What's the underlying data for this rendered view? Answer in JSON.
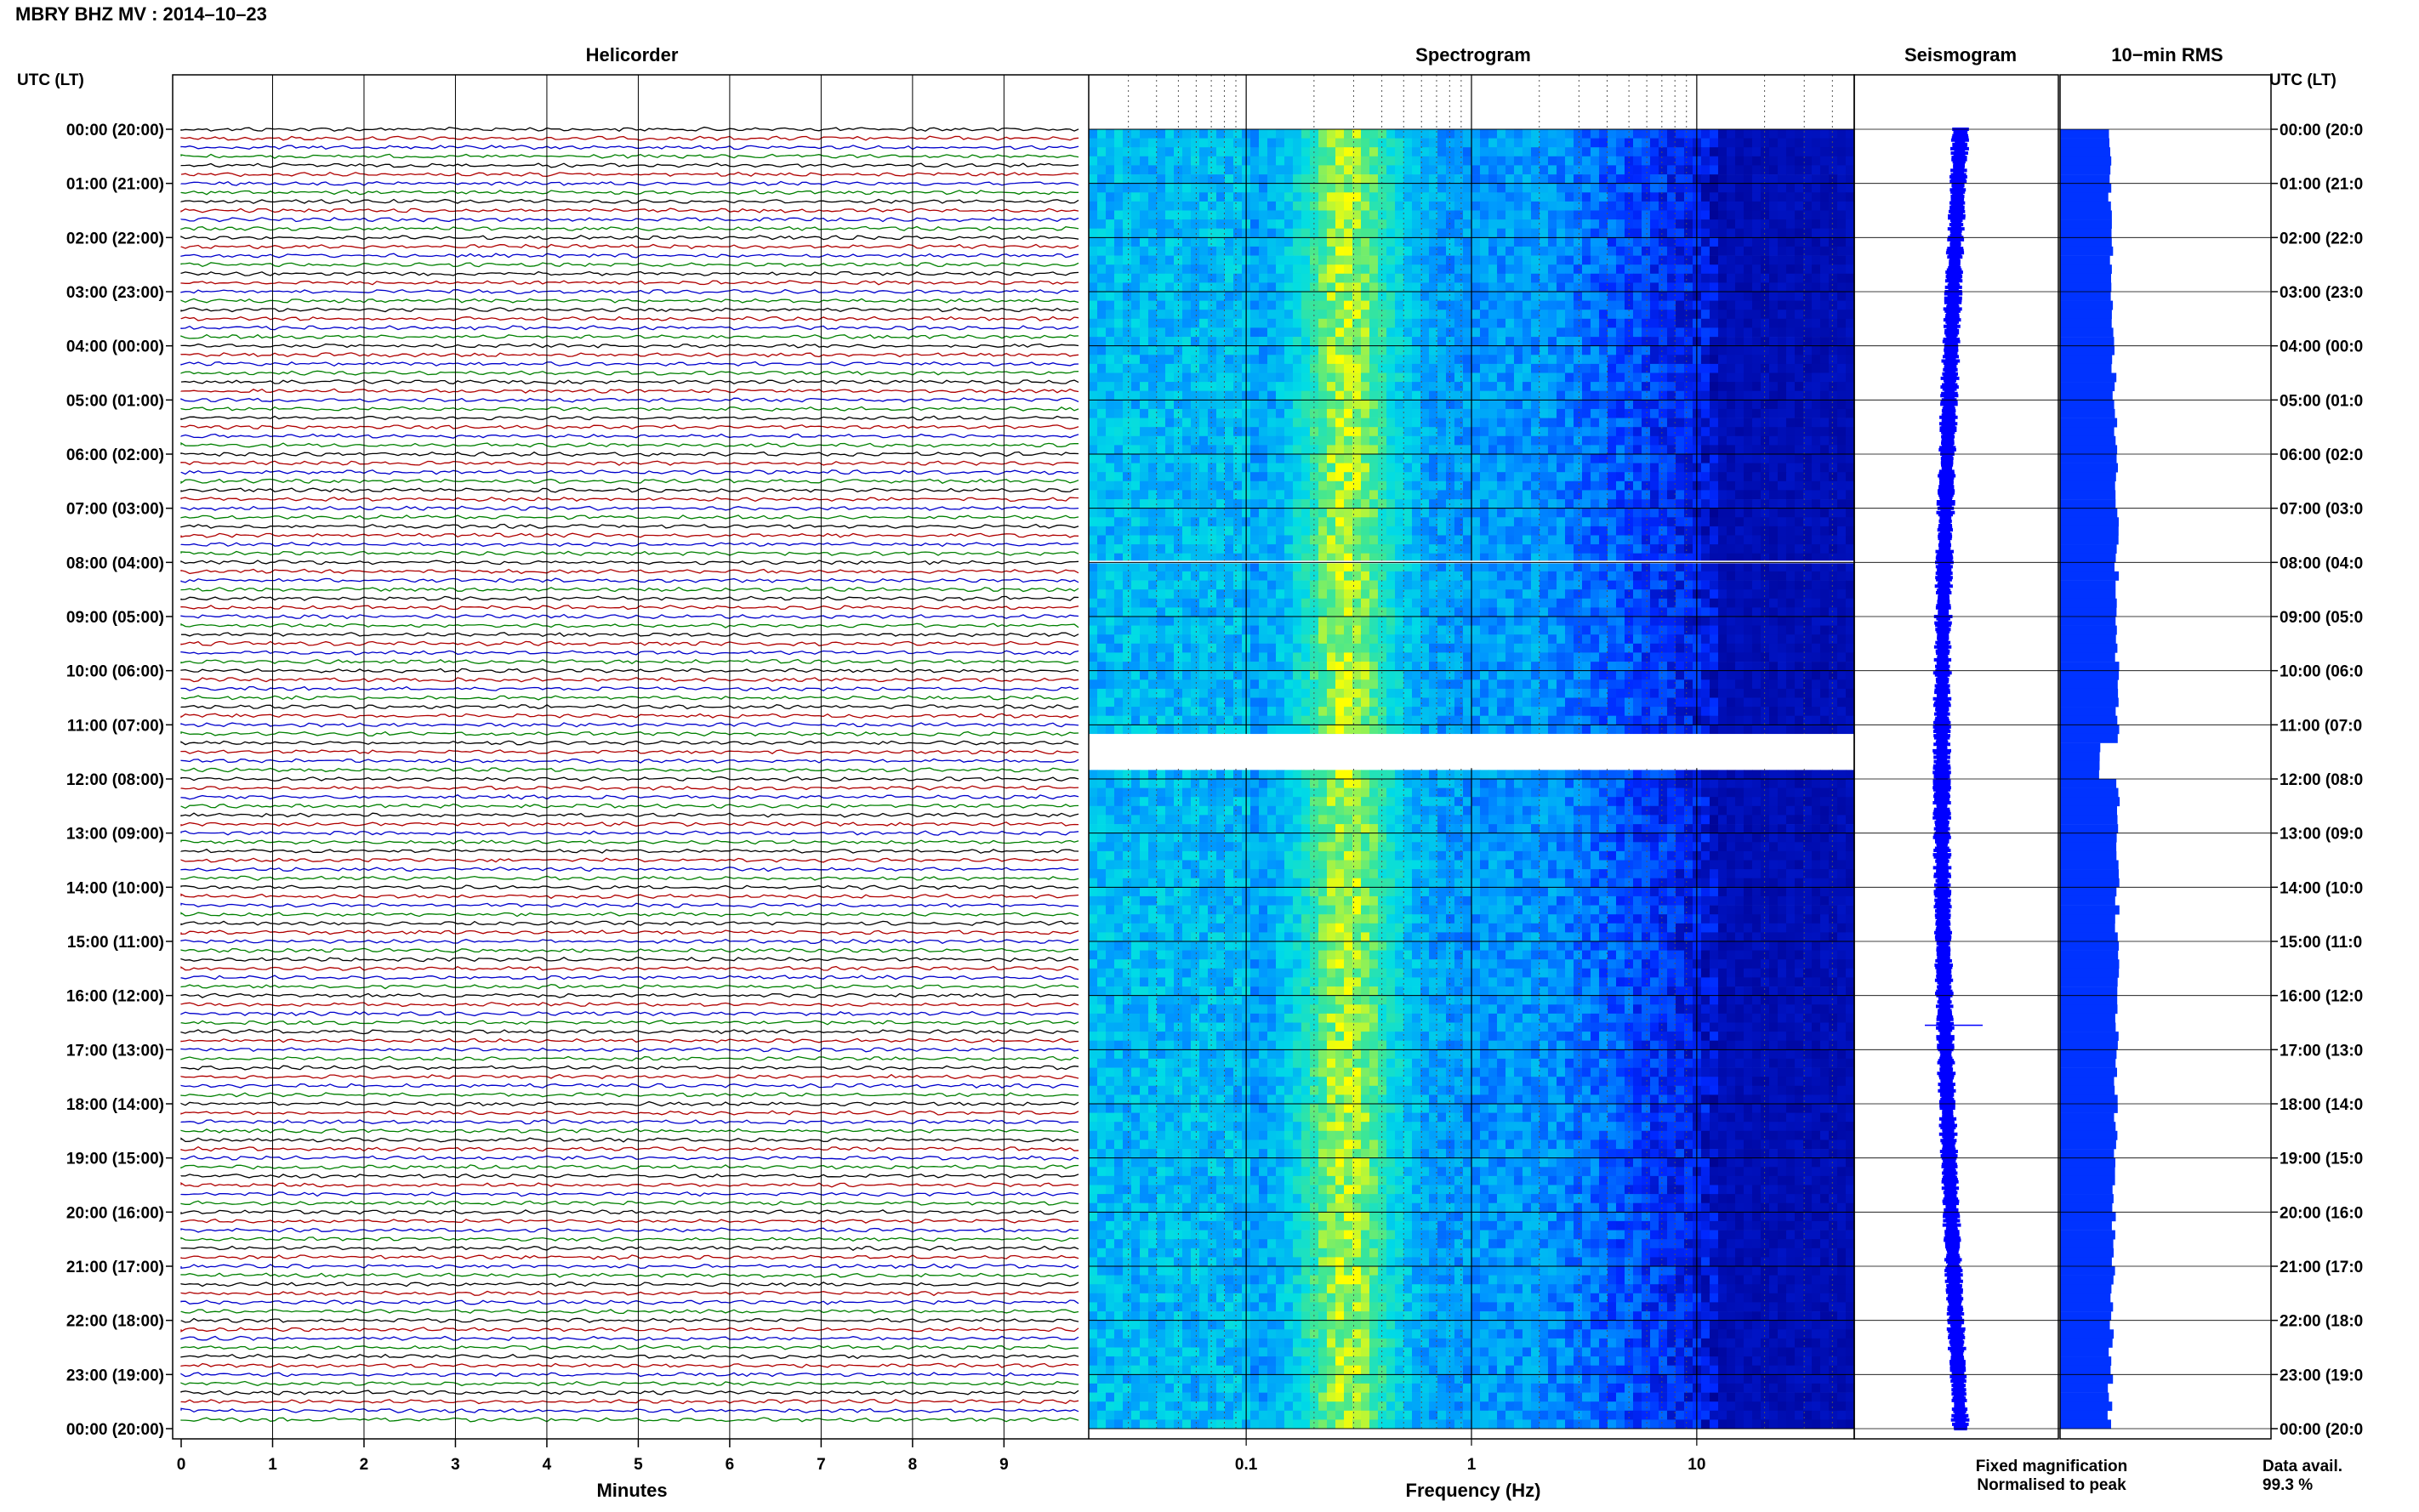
{
  "header": {
    "title": "MBRY BHZ MV : 2014–10–23",
    "left_axis_label": "UTC (LT)",
    "right_axis_label": "UTC (LT)"
  },
  "panels": {
    "helicorder": {
      "title": "Helicorder",
      "xlabel": "Minutes"
    },
    "spectrogram": {
      "title": "Spectrogram",
      "xlabel": "Frequency (Hz)"
    },
    "seismogram": {
      "title": "Seismogram"
    },
    "rms": {
      "title": "10−min RMS"
    }
  },
  "legend": {
    "fixed": "Fixed magnification",
    "normalised": "Normalised to peak",
    "fixed_color": "#0000ff",
    "normalised_color": "#ff0000"
  },
  "data_avail": {
    "label": "Data avail.",
    "value": "99.3 %"
  },
  "colors": {
    "helicorder_traces": [
      "#000000",
      "#b00000",
      "#0000cc",
      "#008000"
    ],
    "spectrogram_low": "#00008b",
    "spectrogram_high": "#ffff00",
    "seismogram": "#0000ff",
    "rms": "#0033ff"
  },
  "chart_data": [
    {
      "type": "line",
      "title": "Helicorder",
      "xlabel": "Minutes",
      "ylabel": "UTC (LT)",
      "xlim": [
        0,
        10
      ],
      "x_ticks": [
        "0",
        "1",
        "2",
        "3",
        "4",
        "5",
        "6",
        "7",
        "8",
        "9"
      ],
      "rows_per_hour": 6,
      "y_ticks_left": [
        "00:00 (20:00)",
        "01:00 (21:00)",
        "02:00 (22:00)",
        "03:00 (23:00)",
        "04:00 (00:00)",
        "05:00 (01:00)",
        "06:00 (02:00)",
        "07:00 (03:00)",
        "08:00 (04:00)",
        "09:00 (05:00)",
        "10:00 (06:00)",
        "11:00 (07:00)",
        "12:00 (08:00)",
        "13:00 (09:00)",
        "14:00 (10:00)",
        "15:00 (11:00)",
        "16:00 (12:00)",
        "17:00 (13:00)",
        "18:00 (14:00)",
        "19:00 (15:00)",
        "20:00 (16:00)",
        "21:00 (17:00)",
        "22:00 (18:00)",
        "23:00 (19:00)",
        "00:00 (20:00)"
      ],
      "y_ticks_right": [
        "00:00 (20:0",
        "01:00 (21:0",
        "02:00 (22:0",
        "03:00 (23:0",
        "04:00 (00:0",
        "05:00 (01:0",
        "06:00 (02:0",
        "07:00 (03:0",
        "08:00 (04:0",
        "09:00 (05:0",
        "10:00 (06:0",
        "11:00 (07:0",
        "12:00 (08:0",
        "13:00 (09:0",
        "14:00 (10:0",
        "15:00 (11:0",
        "16:00 (12:0",
        "17:00 (13:0",
        "18:00 (14:0",
        "19:00 (15:0",
        "20:00 (16:0",
        "21:00 (17:0",
        "22:00 (18:0",
        "23:00 (19:0",
        "00:00 (20:0"
      ]
    },
    {
      "type": "heatmap",
      "title": "Spectrogram",
      "xlabel": "Frequency (Hz)",
      "x_scale": "log",
      "xlim": [
        0.02,
        50
      ],
      "x_tick_labels": [
        {
          "value": 0.1,
          "label": "0.1"
        },
        {
          "value": 1,
          "label": "1"
        },
        {
          "value": 10,
          "label": "10"
        }
      ],
      "peak_band_hz": [
        0.2,
        0.4
      ],
      "gaps_hours": [
        [
          8.0,
          8.0
        ],
        [
          11.2,
          11.8
        ]
      ]
    },
    {
      "type": "line",
      "title": "Seismogram",
      "description_scale": "24-hour compressed trace",
      "event_hour": 16.55
    },
    {
      "type": "bar",
      "title": "10−min RMS",
      "orientation": "horizontal",
      "rows": 144
    }
  ]
}
